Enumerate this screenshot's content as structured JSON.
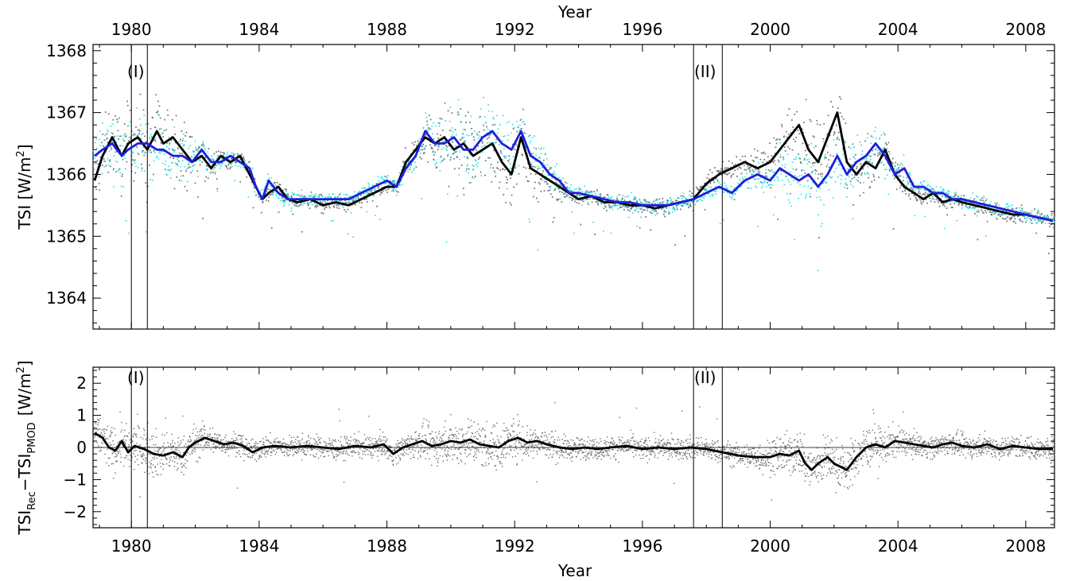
{
  "chart_data": [
    {
      "type": "scatter+line",
      "xlabel": "Year",
      "ylabel": "TSI [W/m²]",
      "xlim": [
        1978.8,
        2008.9
      ],
      "ylim": [
        1363.5,
        1368.1
      ],
      "xticks": [
        "1980",
        "1984",
        "1988",
        "1992",
        "1996",
        "2000",
        "2004",
        "2008"
      ],
      "yticks": [
        "1364",
        "1365",
        "1366",
        "1367",
        "1368"
      ],
      "grid": false,
      "annotations": [
        {
          "text": "(I)",
          "x": 1980.0
        },
        {
          "text": "(II)",
          "x": 1997.6
        }
      ],
      "vlines": [
        1980.0,
        1980.5,
        1997.6,
        1998.5
      ],
      "colors": {
        "daily_pmod": "#6e6e6e",
        "daily_rec": "#22e0e0",
        "smooth_pmod": "#000000",
        "smooth_rec": "#1e1edc"
      },
      "series": [
        {
          "x": [
            1978.85,
            1979.1,
            1979.4,
            1979.7,
            1979.9,
            1980.2,
            1980.5,
            1980.8,
            1981.0,
            1981.3,
            1981.6,
            1981.9,
            1982.2,
            1982.5,
            1982.8,
            1983.1,
            1983.4,
            1983.7,
            1983.9,
            1984.1,
            1984.3,
            1984.6,
            1984.9,
            1985.2,
            1985.6,
            1986.0,
            1986.4,
            1986.8,
            1987.2,
            1987.6,
            1988.0,
            1988.3,
            1988.6,
            1988.9,
            1989.2,
            1989.5,
            1989.8,
            1990.1,
            1990.4,
            1990.7,
            1991.0,
            1991.3,
            1991.6,
            1991.9,
            1992.2,
            1992.5,
            1992.8,
            1993.1,
            1993.4,
            1993.7,
            1994.0,
            1994.4,
            1994.8,
            1995.2,
            1995.6,
            1996.0,
            1996.4,
            1996.8,
            1997.2,
            1997.6,
            1998.0,
            1998.4,
            1998.8,
            1999.2,
            1999.6,
            2000.0,
            2000.3,
            2000.6,
            2000.9,
            2001.2,
            2001.5,
            2001.8,
            2002.1,
            2002.4,
            2002.7,
            2003.0,
            2003.3,
            2003.6,
            2003.9,
            2004.2,
            2004.5,
            2004.8,
            2005.1,
            2005.4,
            2005.7,
            2006.0,
            2006.4,
            2006.8,
            2007.2,
            2007.6,
            2008.0,
            2008.4,
            2008.85
          ],
          "y": [
            1365.9,
            1366.3,
            1366.6,
            1366.3,
            1366.5,
            1366.6,
            1366.4,
            1366.7,
            1366.5,
            1366.6,
            1366.4,
            1366.2,
            1366.3,
            1366.1,
            1366.3,
            1366.2,
            1366.3,
            1366.0,
            1365.8,
            1365.6,
            1365.7,
            1365.8,
            1365.6,
            1365.55,
            1365.6,
            1365.5,
            1365.55,
            1365.5,
            1365.6,
            1365.7,
            1365.8,
            1365.8,
            1366.2,
            1366.4,
            1366.6,
            1366.5,
            1366.6,
            1366.4,
            1366.5,
            1366.3,
            1366.4,
            1366.5,
            1366.2,
            1366.0,
            1366.6,
            1366.1,
            1366.0,
            1365.9,
            1365.8,
            1365.7,
            1365.6,
            1365.65,
            1365.55,
            1365.55,
            1365.5,
            1365.5,
            1365.45,
            1365.5,
            1365.55,
            1365.6,
            1365.85,
            1366.0,
            1366.1,
            1366.2,
            1366.1,
            1366.2,
            1366.4,
            1366.6,
            1366.8,
            1366.4,
            1366.2,
            1366.6,
            1367.0,
            1366.2,
            1366.0,
            1366.2,
            1366.1,
            1366.4,
            1366.0,
            1365.8,
            1365.7,
            1365.6,
            1365.7,
            1365.55,
            1365.6,
            1365.55,
            1365.5,
            1365.45,
            1365.4,
            1365.35,
            1365.35,
            1365.3,
            1365.25
          ]
        },
        {
          "x": [
            1978.85,
            1979.1,
            1979.4,
            1979.7,
            1979.9,
            1980.2,
            1980.5,
            1980.8,
            1981.0,
            1981.3,
            1981.6,
            1981.9,
            1982.2,
            1982.5,
            1982.8,
            1983.1,
            1983.4,
            1983.7,
            1983.9,
            1984.1,
            1984.3,
            1984.6,
            1984.9,
            1985.2,
            1985.6,
            1986.0,
            1986.4,
            1986.8,
            1987.2,
            1987.6,
            1988.0,
            1988.3,
            1988.6,
            1988.9,
            1989.2,
            1989.5,
            1989.8,
            1990.1,
            1990.4,
            1990.7,
            1991.0,
            1991.3,
            1991.6,
            1991.9,
            1992.2,
            1992.5,
            1992.8,
            1993.1,
            1993.4,
            1993.7,
            1994.0,
            1994.4,
            1994.8,
            1995.2,
            1995.6,
            1996.0,
            1996.4,
            1996.8,
            1997.2,
            1997.6,
            1998.0,
            1998.4,
            1998.8,
            1999.2,
            1999.6,
            2000.0,
            2000.3,
            2000.6,
            2000.9,
            2001.2,
            2001.5,
            2001.8,
            2002.1,
            2002.4,
            2002.7,
            2003.0,
            2003.3,
            2003.6,
            2003.9,
            2004.2,
            2004.5,
            2004.8,
            2005.1,
            2005.4,
            2005.7,
            2006.0,
            2006.4,
            2006.8,
            2007.2,
            2007.6,
            2008.0,
            2008.4,
            2008.85
          ],
          "y": [
            1366.3,
            1366.4,
            1366.5,
            1366.3,
            1366.4,
            1366.5,
            1366.5,
            1366.4,
            1366.4,
            1366.3,
            1366.3,
            1366.2,
            1366.4,
            1366.2,
            1366.2,
            1366.3,
            1366.2,
            1366.1,
            1365.8,
            1365.6,
            1365.9,
            1365.7,
            1365.6,
            1365.6,
            1365.6,
            1365.6,
            1365.6,
            1365.6,
            1365.7,
            1365.8,
            1365.9,
            1365.8,
            1366.1,
            1366.3,
            1366.7,
            1366.5,
            1366.5,
            1366.6,
            1366.4,
            1366.4,
            1366.6,
            1366.7,
            1366.5,
            1366.4,
            1366.7,
            1366.3,
            1366.2,
            1366.0,
            1365.9,
            1365.7,
            1365.7,
            1365.65,
            1365.6,
            1365.55,
            1365.55,
            1365.5,
            1365.5,
            1365.5,
            1365.55,
            1365.6,
            1365.7,
            1365.8,
            1365.7,
            1365.9,
            1366.0,
            1365.9,
            1366.1,
            1366.0,
            1365.9,
            1366.0,
            1365.8,
            1366.0,
            1366.3,
            1366.0,
            1366.2,
            1366.3,
            1366.5,
            1366.3,
            1366.0,
            1366.1,
            1365.8,
            1365.8,
            1365.7,
            1365.7,
            1365.6,
            1365.6,
            1365.55,
            1365.5,
            1365.45,
            1365.4,
            1365.35,
            1365.3,
            1365.25
          ]
        }
      ]
    },
    {
      "type": "scatter+line",
      "xlabel": "Year",
      "ylabel": "TSI_Rec − TSI_PMOD [W/m²]",
      "ylabel_parts": {
        "a": "TSI",
        "a_sub": "Rec",
        "op": "−",
        "b": "TSI",
        "b_sub": "PMOD",
        "unit": "[W/m",
        "unit_sup": "2",
        "unit_end": "]"
      },
      "xlim": [
        1978.8,
        2008.9
      ],
      "ylim": [
        -2.5,
        2.5
      ],
      "xticks": [
        "1980",
        "1984",
        "1988",
        "1992",
        "1996",
        "2000",
        "2004",
        "2008"
      ],
      "yticks": [
        "−2",
        "−1",
        "0",
        "1",
        "2"
      ],
      "zero_line": true,
      "annotations": [
        {
          "text": "(I)",
          "x": 1980.0
        },
        {
          "text": "(II)",
          "x": 1997.6
        }
      ],
      "vlines": [
        1980.0,
        1980.5,
        1997.6,
        1998.5
      ],
      "colors": {
        "daily": "#6e6e6e",
        "smooth": "#000000"
      },
      "series": [
        {
          "x": [
            1978.85,
            1979.1,
            1979.3,
            1979.5,
            1979.7,
            1979.9,
            1980.1,
            1980.4,
            1980.7,
            1981.0,
            1981.3,
            1981.6,
            1981.8,
            1982.0,
            1982.3,
            1982.6,
            1982.9,
            1983.2,
            1983.5,
            1983.8,
            1984.1,
            1984.5,
            1985.0,
            1985.5,
            1986.0,
            1986.5,
            1987.0,
            1987.5,
            1987.9,
            1988.2,
            1988.5,
            1988.8,
            1989.1,
            1989.4,
            1989.7,
            1990.0,
            1990.3,
            1990.6,
            1990.9,
            1991.2,
            1991.5,
            1991.8,
            1992.1,
            1992.4,
            1992.7,
            1993.0,
            1993.4,
            1993.8,
            1994.2,
            1994.6,
            1995.0,
            1995.5,
            1996.0,
            1996.5,
            1997.0,
            1997.5,
            1998.0,
            1998.5,
            1999.0,
            1999.5,
            2000.0,
            2000.3,
            2000.6,
            2000.9,
            2001.1,
            2001.3,
            2001.5,
            2001.8,
            2002.0,
            2002.2,
            2002.4,
            2002.7,
            2003.0,
            2003.3,
            2003.6,
            2003.9,
            2004.2,
            2004.5,
            2004.8,
            2005.1,
            2005.4,
            2005.7,
            2006.0,
            2006.4,
            2006.8,
            2007.2,
            2007.6,
            2008.0,
            2008.4,
            2008.85
          ],
          "y": [
            0.45,
            0.3,
            0.0,
            -0.1,
            0.2,
            -0.15,
            0.05,
            -0.05,
            -0.2,
            -0.25,
            -0.15,
            -0.3,
            0.0,
            0.15,
            0.3,
            0.2,
            0.1,
            0.15,
            0.05,
            -0.15,
            0.0,
            0.05,
            0.0,
            0.05,
            0.0,
            -0.05,
            0.05,
            0.0,
            0.1,
            -0.2,
            0.0,
            0.1,
            0.2,
            0.05,
            0.1,
            0.2,
            0.15,
            0.25,
            0.1,
            0.05,
            0.0,
            0.2,
            0.3,
            0.15,
            0.2,
            0.1,
            0.0,
            -0.05,
            0.0,
            -0.05,
            0.0,
            0.05,
            -0.05,
            0.0,
            -0.05,
            0.0,
            -0.05,
            -0.15,
            -0.25,
            -0.3,
            -0.3,
            -0.2,
            -0.25,
            -0.1,
            -0.5,
            -0.7,
            -0.5,
            -0.3,
            -0.5,
            -0.6,
            -0.7,
            -0.3,
            0.0,
            0.1,
            0.0,
            0.2,
            0.15,
            0.1,
            0.05,
            0.0,
            0.1,
            0.15,
            0.05,
            0.0,
            0.1,
            -0.05,
            0.05,
            0.0,
            -0.05,
            -0.05
          ]
        }
      ]
    }
  ]
}
